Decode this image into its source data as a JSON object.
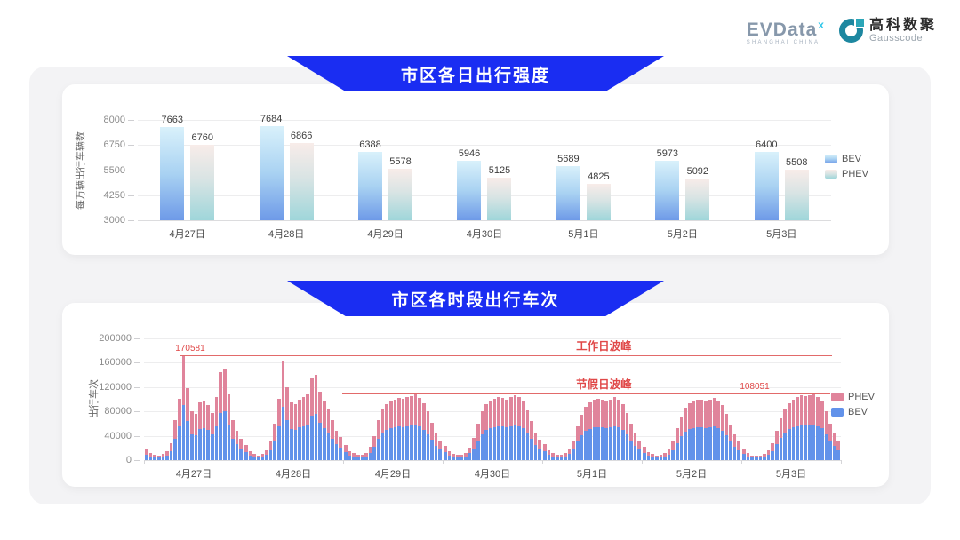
{
  "logos": {
    "evdata": {
      "text": "EVData",
      "sup": "x",
      "sub": "SHANGHAI CHINA"
    },
    "gausscode": {
      "cn": "高科数聚",
      "en": "Gausscode"
    }
  },
  "colors": {
    "banner_blue": "#1a2df2",
    "red_annotation": "#e04848",
    "red_line": "#e26a6a",
    "bev_bar_gradient_top": "#d9f1fb",
    "bev_bar_gradient_bottom": "#6e9ae8",
    "phev_bar_gradient_top": "#f8ece9",
    "phev_bar_gradient_bottom": "#9fd6da",
    "stack_bev_blue": "#6292ea",
    "stack_phev_pink": "#e0849b"
  },
  "chart_data": [
    {
      "type": "bar",
      "title": "市区各日出行强度",
      "ylabel": "每万辆出行车辆数",
      "ylim": [
        3000,
        8000
      ],
      "yticks": [
        8000,
        6750,
        5500,
        4250,
        3000
      ],
      "grid": true,
      "legend_position": "right",
      "categories": [
        "4月27日",
        "4月28日",
        "4月29日",
        "4月30日",
        "5月1日",
        "5月2日",
        "5月3日"
      ],
      "series": [
        {
          "name": "BEV",
          "values": [
            7663,
            7684,
            6388,
            5946,
            5689,
            5973,
            6400
          ]
        },
        {
          "name": "PHEV",
          "values": [
            6760,
            6866,
            5578,
            5125,
            4825,
            5092,
            5508
          ]
        }
      ]
    },
    {
      "type": "bar",
      "subtype": "stacked-hourly",
      "title": "市区各时段出行车次",
      "ylabel": "出行车次",
      "ylim": [
        0,
        200000
      ],
      "yticks": [
        200000,
        160000,
        120000,
        80000,
        40000,
        0
      ],
      "grid": true,
      "legend_position": "right",
      "legend_order": [
        "PHEV",
        "BEV"
      ],
      "categories": [
        "4月27日",
        "4月28日",
        "4月29日",
        "4月30日",
        "5月1日",
        "5月2日",
        "5月3日"
      ],
      "hours_per_day": 24,
      "series": [
        {
          "name": "BEV",
          "days": [
            [
              9000,
              6000,
              5000,
              4500,
              5500,
              8000,
              15000,
              35000,
              55000,
              91000,
              64000,
              43000,
              41000,
              51000,
              52000,
              49000,
              42000,
              56000,
              78000,
              81000,
              58000,
              35000,
              26000,
              19000
            ],
            [
              13500,
              7500,
              5500,
              4500,
              5500,
              9000,
              16000,
              32000,
              55000,
              88000,
              65000,
              51000,
              50000,
              54000,
              56000,
              58000,
              73000,
              76000,
              61000,
              52000,
              46000,
              35000,
              26000,
              20500
            ],
            [
              13500,
              8000,
              6000,
              5000,
              5000,
              6500,
              12000,
              21500,
              35000,
              45000,
              50000,
              52000,
              54000,
              55000,
              54500,
              55500,
              57000,
              58000,
              55000,
              50000,
              43000,
              33500,
              24000,
              17000
            ],
            [
              13000,
              7500,
              5500,
              5000,
              5000,
              6500,
              11000,
              19500,
              32500,
              43000,
              50000,
              53000,
              54500,
              55500,
              55000,
              54000,
              55500,
              58000,
              56000,
              52000,
              44000,
              34500,
              25000,
              18000
            ],
            [
              14000,
              8500,
              6000,
              5000,
              5000,
              6000,
              10000,
              17000,
              30000,
              40500,
              47500,
              51000,
              53500,
              54500,
              54000,
              53000,
              54000,
              55500,
              54000,
              49500,
              42000,
              32500,
              24000,
              17000
            ],
            [
              12000,
              7000,
              5500,
              4500,
              5000,
              6000,
              9000,
              16000,
              28000,
              39000,
              46500,
              51000,
              53000,
              54000,
              53500,
              52500,
              53500,
              55000,
              53000,
              48500,
              41000,
              31500,
              22500,
              16000
            ],
            [
              10000,
              6000,
              4500,
              4000,
              4500,
              5500,
              8500,
              15000,
              26000,
              37000,
              45500,
              51000,
              54000,
              56000,
              57000,
              56500,
              58000,
              58500,
              56000,
              52000,
              43000,
              32500,
              24000,
              16000
            ]
          ]
        },
        {
          "name": "PHEV",
          "days": [
            [
              8000,
              5000,
              4000,
              3500,
              4500,
              7000,
              13000,
              30000,
              46000,
              79581,
              55000,
              37000,
              35000,
              44000,
              44000,
              41000,
              36000,
              48000,
              67000,
              69000,
              50000,
              30000,
              22000,
              16000
            ],
            [
              11500,
              6500,
              4500,
              3500,
              4500,
              7000,
              14000,
              28000,
              46000,
              75000,
              55000,
              44000,
              42000,
              46000,
              47000,
              50000,
              62000,
              64000,
              52000,
              44000,
              39000,
              30000,
              22000,
              17500
            ],
            [
              11500,
              7000,
              5000,
              4000,
              4000,
              5500,
              10000,
              18500,
              30000,
              38000,
              42000,
              45000,
              46000,
              47000,
              46500,
              47500,
              48000,
              50000,
              47000,
              43000,
              37000,
              28500,
              21000,
              15000
            ],
            [
              11000,
              6500,
              4500,
              4000,
              4000,
              5500,
              9000,
              16500,
              27500,
              37000,
              42000,
              45000,
              46500,
              47500,
              47000,
              46000,
              47500,
              49000,
              48000,
              44000,
              38000,
              29500,
              21000,
              15000
            ],
            [
              12000,
              7500,
              5000,
              4000,
              4000,
              5000,
              8000,
              15000,
              25000,
              34500,
              40500,
              44000,
              45500,
              46500,
              46000,
              45000,
              46000,
              47500,
              46000,
              42500,
              36000,
              27500,
              20000,
              14000
            ],
            [
              10000,
              6000,
              4500,
              3500,
              4000,
              5000,
              8000,
              14000,
              24000,
              33000,
              39500,
              43000,
              45000,
              46000,
              45500,
              44500,
              45500,
              47000,
              45000,
              41500,
              35000,
              26500,
              19500,
              14000
            ],
            [
              8000,
              5000,
              3500,
              3000,
              3500,
              4500,
              7500,
              13000,
              22000,
              31000,
              38500,
              43000,
              46000,
              48000,
              49000,
              48500,
              49000,
              49551,
              48000,
              44000,
              37000,
              27500,
              20000,
              14000
            ]
          ]
        }
      ],
      "annotations": [
        {
          "label": "工作日波峰",
          "value": 170581,
          "value_label": "170581"
        },
        {
          "label": "节假日波峰",
          "value": 108051,
          "value_label": "108051"
        }
      ]
    }
  ]
}
